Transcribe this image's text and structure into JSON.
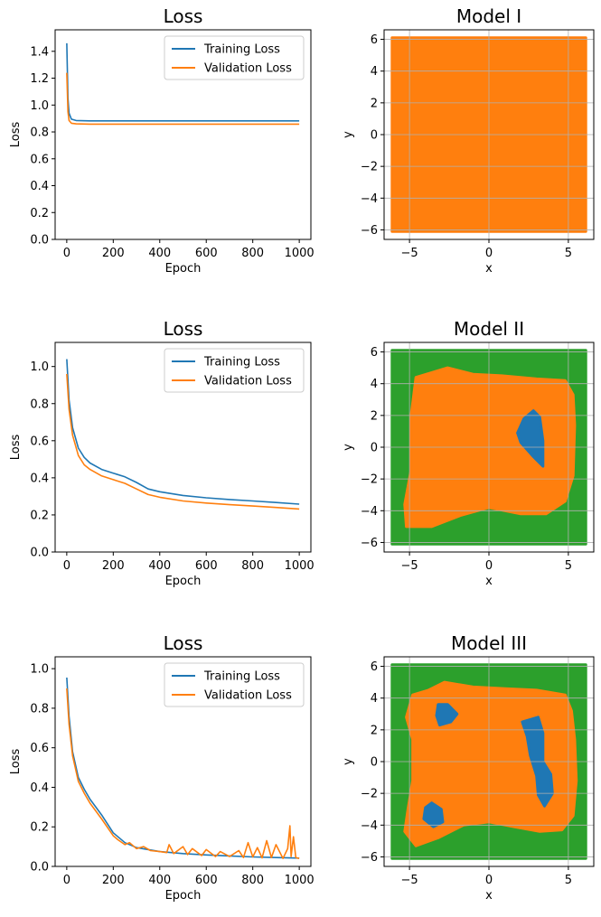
{
  "colors": {
    "training": "#1f77b4",
    "validation": "#ff7f0e",
    "model_green": "#2ca02c",
    "model_orange": "#ff7f0e",
    "model_blue": "#1f77b4",
    "grid": "#b0b0b0"
  },
  "chart_data": [
    {
      "type": "line",
      "title": "Loss",
      "xlabel": "Epoch",
      "ylabel": "Loss",
      "xlim": [
        -50,
        1050
      ],
      "ylim": [
        0.0,
        1.56
      ],
      "xticks": [
        0,
        200,
        400,
        600,
        800,
        1000
      ],
      "yticks": [
        0.0,
        0.2,
        0.4,
        0.6,
        0.8,
        1.0,
        1.2,
        1.4
      ],
      "ytick_labels": [
        "0.0",
        "0.2",
        "0.4",
        "0.6",
        "0.8",
        "1.0",
        "1.2",
        "1.4"
      ],
      "legend_position": "upper right",
      "series": [
        {
          "name": "Training Loss",
          "x": [
            0,
            5,
            10,
            20,
            40,
            100,
            200,
            400,
            600,
            800,
            1000
          ],
          "y": [
            1.46,
            1.05,
            0.94,
            0.895,
            0.885,
            0.882,
            0.882,
            0.882,
            0.882,
            0.882,
            0.882
          ]
        },
        {
          "name": "Validation Loss",
          "x": [
            0,
            5,
            10,
            20,
            40,
            100,
            200,
            400,
            600,
            800,
            1000
          ],
          "y": [
            1.24,
            0.95,
            0.885,
            0.865,
            0.86,
            0.858,
            0.858,
            0.858,
            0.858,
            0.858,
            0.858
          ]
        }
      ]
    },
    {
      "type": "scatter",
      "title": "Model I",
      "xlabel": "x",
      "ylabel": "y",
      "xlim": [
        -6.6,
        6.6
      ],
      "ylim": [
        -6.6,
        6.6
      ],
      "xticks": [
        -5,
        0,
        5
      ],
      "xtick_labels": [
        "−5",
        "0",
        "5"
      ],
      "yticks": [
        -6,
        -4,
        -2,
        0,
        2,
        4,
        6
      ],
      "ytick_labels": [
        "−6",
        "−4",
        "−2",
        "0",
        "2",
        "4",
        "6"
      ],
      "grid": true,
      "regions": [
        {
          "class": "orange",
          "polygon": [
            [
              -6.1,
              -6.1
            ],
            [
              6.1,
              -6.1
            ],
            [
              6.1,
              6.1
            ],
            [
              -6.1,
              6.1
            ]
          ]
        }
      ]
    },
    {
      "type": "line",
      "title": "Loss",
      "xlabel": "Epoch",
      "ylabel": "Loss",
      "xlim": [
        -50,
        1050
      ],
      "ylim": [
        0.0,
        1.13
      ],
      "xticks": [
        0,
        200,
        400,
        600,
        800,
        1000
      ],
      "yticks": [
        0.0,
        0.2,
        0.4,
        0.6,
        0.8,
        1.0
      ],
      "ytick_labels": [
        "0.0",
        "0.2",
        "0.4",
        "0.6",
        "0.8",
        "1.0"
      ],
      "legend_position": "upper right",
      "series": [
        {
          "name": "Training Loss",
          "x": [
            0,
            10,
            25,
            50,
            75,
            100,
            150,
            200,
            250,
            300,
            350,
            400,
            500,
            600,
            700,
            800,
            900,
            1000
          ],
          "y": [
            1.04,
            0.82,
            0.67,
            0.56,
            0.51,
            0.48,
            0.445,
            0.425,
            0.405,
            0.375,
            0.34,
            0.325,
            0.305,
            0.292,
            0.283,
            0.275,
            0.267,
            0.258
          ]
        },
        {
          "name": "Validation Loss",
          "x": [
            0,
            10,
            25,
            50,
            75,
            100,
            150,
            200,
            250,
            300,
            350,
            400,
            500,
            600,
            700,
            800,
            900,
            1000
          ],
          "y": [
            0.96,
            0.77,
            0.63,
            0.52,
            0.47,
            0.445,
            0.41,
            0.39,
            0.37,
            0.34,
            0.31,
            0.295,
            0.275,
            0.264,
            0.255,
            0.248,
            0.24,
            0.232
          ]
        }
      ]
    },
    {
      "type": "scatter",
      "title": "Model II",
      "xlabel": "x",
      "ylabel": "y",
      "xlim": [
        -6.6,
        6.6
      ],
      "ylim": [
        -6.6,
        6.6
      ],
      "xticks": [
        -5,
        0,
        5
      ],
      "xtick_labels": [
        "−5",
        "0",
        "5"
      ],
      "yticks": [
        -6,
        -4,
        -2,
        0,
        2,
        4,
        6
      ],
      "ytick_labels": [
        "−6",
        "−4",
        "−2",
        "0",
        "2",
        "4",
        "6"
      ],
      "grid": true,
      "regions": [
        {
          "class": "green",
          "polygon": [
            [
              -6.1,
              -6.1
            ],
            [
              6.1,
              -6.1
            ],
            [
              6.1,
              6.1
            ],
            [
              -6.1,
              6.1
            ]
          ]
        },
        {
          "class": "orange",
          "polygon": [
            [
              -4.6,
              4.4
            ],
            [
              -3.6,
              4.7
            ],
            [
              -2.6,
              5.0
            ],
            [
              -1.0,
              4.6
            ],
            [
              0.8,
              4.5
            ],
            [
              3.0,
              4.3
            ],
            [
              4.8,
              4.2
            ],
            [
              5.3,
              3.3
            ],
            [
              5.4,
              1.4
            ],
            [
              5.3,
              -1.8
            ],
            [
              4.8,
              -3.4
            ],
            [
              3.6,
              -4.2
            ],
            [
              2.0,
              -4.2
            ],
            [
              0.0,
              -3.8
            ],
            [
              -1.8,
              -4.3
            ],
            [
              -3.6,
              -5.0
            ],
            [
              -5.2,
              -5.0
            ],
            [
              -5.3,
              -3.6
            ],
            [
              -4.9,
              -1.4
            ],
            [
              -4.9,
              2.0
            ]
          ]
        },
        {
          "class": "blue",
          "polygon": [
            [
              2.8,
              2.3
            ],
            [
              3.2,
              1.9
            ],
            [
              3.4,
              0.4
            ],
            [
              3.4,
              -1.2
            ],
            [
              2.8,
              -0.6
            ],
            [
              2.0,
              0.3
            ],
            [
              1.8,
              0.9
            ],
            [
              2.2,
              1.8
            ]
          ]
        }
      ]
    },
    {
      "type": "line",
      "title": "Loss",
      "xlabel": "Epoch",
      "ylabel": "Loss",
      "xlim": [
        -50,
        1050
      ],
      "ylim": [
        0.0,
        1.06
      ],
      "xticks": [
        0,
        200,
        400,
        600,
        800,
        1000
      ],
      "yticks": [
        0.0,
        0.2,
        0.4,
        0.6,
        0.8,
        1.0
      ],
      "ytick_labels": [
        "0.0",
        "0.2",
        "0.4",
        "0.6",
        "0.8",
        "1.0"
      ],
      "legend_position": "upper right",
      "series": [
        {
          "name": "Training Loss",
          "x": [
            0,
            10,
            25,
            50,
            75,
            100,
            150,
            200,
            250,
            300,
            400,
            500,
            600,
            700,
            800,
            900,
            1000
          ],
          "y": [
            0.955,
            0.76,
            0.58,
            0.45,
            0.39,
            0.34,
            0.26,
            0.17,
            0.12,
            0.095,
            0.075,
            0.065,
            0.058,
            0.053,
            0.048,
            0.045,
            0.042
          ]
        },
        {
          "name": "Validation Loss",
          "x": [
            0,
            10,
            25,
            50,
            75,
            100,
            150,
            200,
            220,
            250,
            270,
            300,
            330,
            360,
            400,
            430,
            440,
            460,
            500,
            520,
            540,
            580,
            600,
            640,
            660,
            700,
            740,
            760,
            780,
            800,
            820,
            840,
            860,
            880,
            900,
            930,
            950,
            960,
            965,
            975,
            985,
            1000
          ],
          "y": [
            0.9,
            0.72,
            0.56,
            0.43,
            0.37,
            0.32,
            0.24,
            0.155,
            0.135,
            0.11,
            0.12,
            0.09,
            0.1,
            0.08,
            0.075,
            0.07,
            0.11,
            0.065,
            0.1,
            0.06,
            0.09,
            0.055,
            0.085,
            0.05,
            0.075,
            0.05,
            0.08,
            0.045,
            0.12,
            0.048,
            0.095,
            0.043,
            0.13,
            0.045,
            0.11,
            0.04,
            0.09,
            0.205,
            0.05,
            0.15,
            0.045,
            0.04
          ]
        }
      ]
    },
    {
      "type": "scatter",
      "title": "Model III",
      "xlabel": "x",
      "ylabel": "y",
      "xlim": [
        -6.6,
        6.6
      ],
      "ylim": [
        -6.6,
        6.6
      ],
      "xticks": [
        -5,
        0,
        5
      ],
      "xtick_labels": [
        "−5",
        "0",
        "5"
      ],
      "yticks": [
        -6,
        -4,
        -2,
        0,
        2,
        4,
        6
      ],
      "ytick_labels": [
        "−6",
        "−4",
        "−2",
        "0",
        "2",
        "4",
        "6"
      ],
      "grid": true,
      "regions": [
        {
          "class": "green",
          "polygon": [
            [
              -6.1,
              -6.1
            ],
            [
              6.1,
              -6.1
            ],
            [
              6.1,
              6.1
            ],
            [
              -6.1,
              6.1
            ]
          ]
        },
        {
          "class": "orange",
          "polygon": [
            [
              -4.8,
              4.2
            ],
            [
              -3.8,
              4.5
            ],
            [
              -2.8,
              5.0
            ],
            [
              -1.0,
              4.7
            ],
            [
              1.0,
              4.6
            ],
            [
              3.0,
              4.5
            ],
            [
              4.8,
              4.2
            ],
            [
              5.2,
              3.2
            ],
            [
              5.4,
              1.4
            ],
            [
              5.5,
              -1.2
            ],
            [
              5.3,
              -3.4
            ],
            [
              4.6,
              -4.3
            ],
            [
              3.2,
              -4.4
            ],
            [
              1.6,
              -4.1
            ],
            [
              0.0,
              -3.8
            ],
            [
              -1.6,
              -4.0
            ],
            [
              -3.2,
              -4.8
            ],
            [
              -4.6,
              -5.3
            ],
            [
              -5.3,
              -4.4
            ],
            [
              -5.1,
              -3.0
            ],
            [
              -4.8,
              -1.2
            ],
            [
              -4.8,
              1.4
            ],
            [
              -5.2,
              2.8
            ]
          ]
        },
        {
          "class": "blue",
          "polygon": [
            [
              -3.2,
              3.6
            ],
            [
              -2.6,
              3.6
            ],
            [
              -2.0,
              3.0
            ],
            [
              -2.4,
              2.5
            ],
            [
              -3.1,
              2.3
            ],
            [
              -3.3,
              2.9
            ]
          ]
        },
        {
          "class": "blue",
          "polygon": [
            [
              2.1,
              2.5
            ],
            [
              3.1,
              2.8
            ],
            [
              3.4,
              1.8
            ],
            [
              3.4,
              0.0
            ],
            [
              3.9,
              -0.8
            ],
            [
              4.0,
              -2.0
            ],
            [
              3.5,
              -2.8
            ],
            [
              3.1,
              -2.1
            ],
            [
              3.0,
              -0.9
            ],
            [
              2.6,
              0.4
            ],
            [
              2.4,
              1.6
            ]
          ]
        },
        {
          "class": "blue",
          "polygon": [
            [
              -3.6,
              -2.6
            ],
            [
              -3.0,
              -3.0
            ],
            [
              -2.9,
              -3.8
            ],
            [
              -3.5,
              -4.1
            ],
            [
              -4.1,
              -3.6
            ],
            [
              -4.0,
              -2.9
            ]
          ]
        }
      ]
    }
  ]
}
